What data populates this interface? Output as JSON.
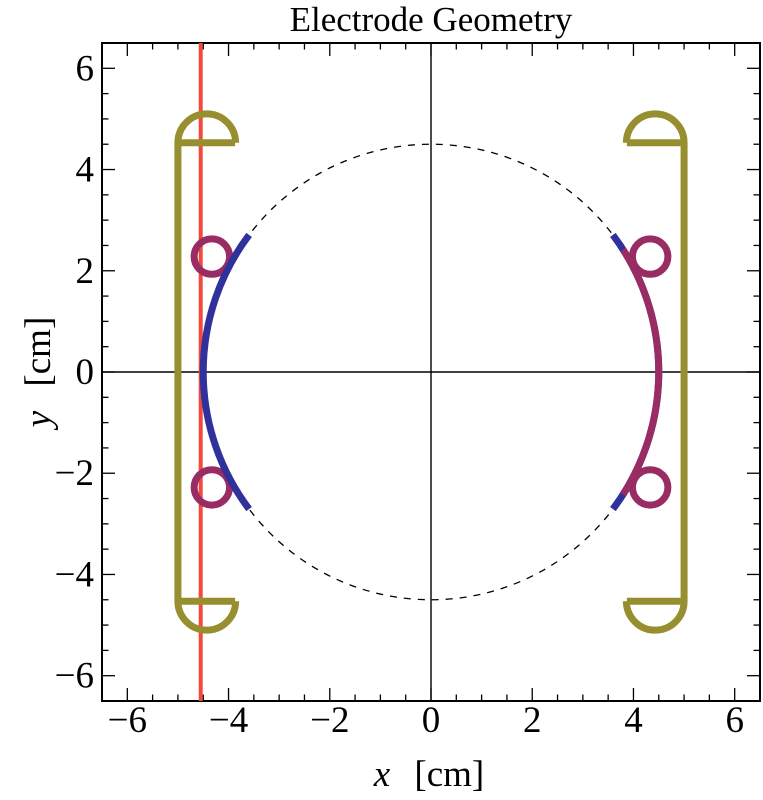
{
  "title": "Electrode Geometry",
  "x_axis": {
    "var": "x",
    "unit": "[cm]"
  },
  "y_axis": {
    "var": "y",
    "unit": "[cm]"
  },
  "chart_data": {
    "type": "geometry-plot",
    "title": "Electrode Geometry",
    "xlabel": "x [cm]",
    "ylabel": "y [cm]",
    "xlim": [
      -6.5,
      6.5
    ],
    "ylim": [
      -6.5,
      6.5
    ],
    "grid": false,
    "frame": true,
    "axes_origin": [
      0,
      0
    ],
    "major_ticks": [
      -6,
      -4,
      -2,
      0,
      2,
      4,
      6
    ],
    "minor_tick_step": 0.5,
    "legend": "none",
    "colors": {
      "left_electrode_blue": "#31319B",
      "right_electrode_purple": "#992D63",
      "support_olive": "#978E2F",
      "reference_red": "#F3493D",
      "guide_black": "#000000"
    },
    "elements": [
      {
        "type": "dashed_circle",
        "name": "trap-boundary-circle",
        "cx": 0,
        "cy": 0,
        "r": 4.5,
        "color": "#000000",
        "stroke_px": 1.3,
        "dash": [
          7,
          7
        ]
      },
      {
        "type": "vline",
        "name": "reference-line",
        "x": -4.55,
        "color": "#F3493D",
        "stroke_px": 4
      },
      {
        "type": "bracket",
        "name": "left-support-bracket",
        "x_outer": -5.0,
        "x_inner": -3.87,
        "y1": -4.53,
        "y2": 4.53,
        "color": "#978E2F",
        "stroke_px": 7
      },
      {
        "type": "bracket",
        "name": "right-support-bracket",
        "x_outer": 5.0,
        "x_inner": 3.87,
        "y1": -4.53,
        "y2": 4.53,
        "color": "#978E2F",
        "stroke_px": 7
      },
      {
        "type": "half_disk",
        "name": "endcap-top-left",
        "cx": -4.43,
        "cy": 4.53,
        "r": 0.57,
        "bulge": "up",
        "color": "#978E2F",
        "stroke_px": 7
      },
      {
        "type": "half_disk",
        "name": "endcap-top-right",
        "cx": 4.43,
        "cy": 4.53,
        "r": 0.57,
        "bulge": "up",
        "color": "#978E2F",
        "stroke_px": 7
      },
      {
        "type": "half_disk",
        "name": "endcap-bottom-left",
        "cx": -4.43,
        "cy": -4.53,
        "r": 0.57,
        "bulge": "down",
        "color": "#978E2F",
        "stroke_px": 7
      },
      {
        "type": "half_disk",
        "name": "endcap-bottom-right",
        "cx": 4.43,
        "cy": -4.53,
        "r": 0.57,
        "bulge": "down",
        "color": "#978E2F",
        "stroke_px": 7
      },
      {
        "type": "ring",
        "name": "rod-top-left",
        "cx": -4.33,
        "cy": 2.28,
        "r": 0.35,
        "color": "#992D63",
        "stroke_px": 7
      },
      {
        "type": "ring",
        "name": "rod-bottom-left",
        "cx": -4.33,
        "cy": -2.28,
        "r": 0.35,
        "color": "#992D63",
        "stroke_px": 7
      },
      {
        "type": "ring",
        "name": "rod-top-right",
        "cx": 4.33,
        "cy": 2.28,
        "r": 0.35,
        "color": "#992D63",
        "stroke_px": 7
      },
      {
        "type": "ring",
        "name": "rod-bottom-right",
        "cx": 4.33,
        "cy": -2.28,
        "r": 0.35,
        "color": "#992D63",
        "stroke_px": 7
      },
      {
        "type": "arc",
        "name": "left-electrode-arc",
        "cx": 0,
        "cy": 0,
        "r": 4.5,
        "a0": 143,
        "a1": 217,
        "color": "#31319B",
        "stroke_px": 7
      },
      {
        "type": "arc",
        "name": "right-electrode-arc-tips",
        "cx": 0,
        "cy": 0,
        "r": 4.5,
        "a0": -37,
        "a1": 37,
        "color": "#31319B",
        "stroke_px": 7
      },
      {
        "type": "arc",
        "name": "right-electrode-arc",
        "cx": 0,
        "cy": 0,
        "r": 4.5,
        "a0": -32.5,
        "a1": 32.5,
        "color": "#992D63",
        "stroke_px": 7
      }
    ]
  }
}
